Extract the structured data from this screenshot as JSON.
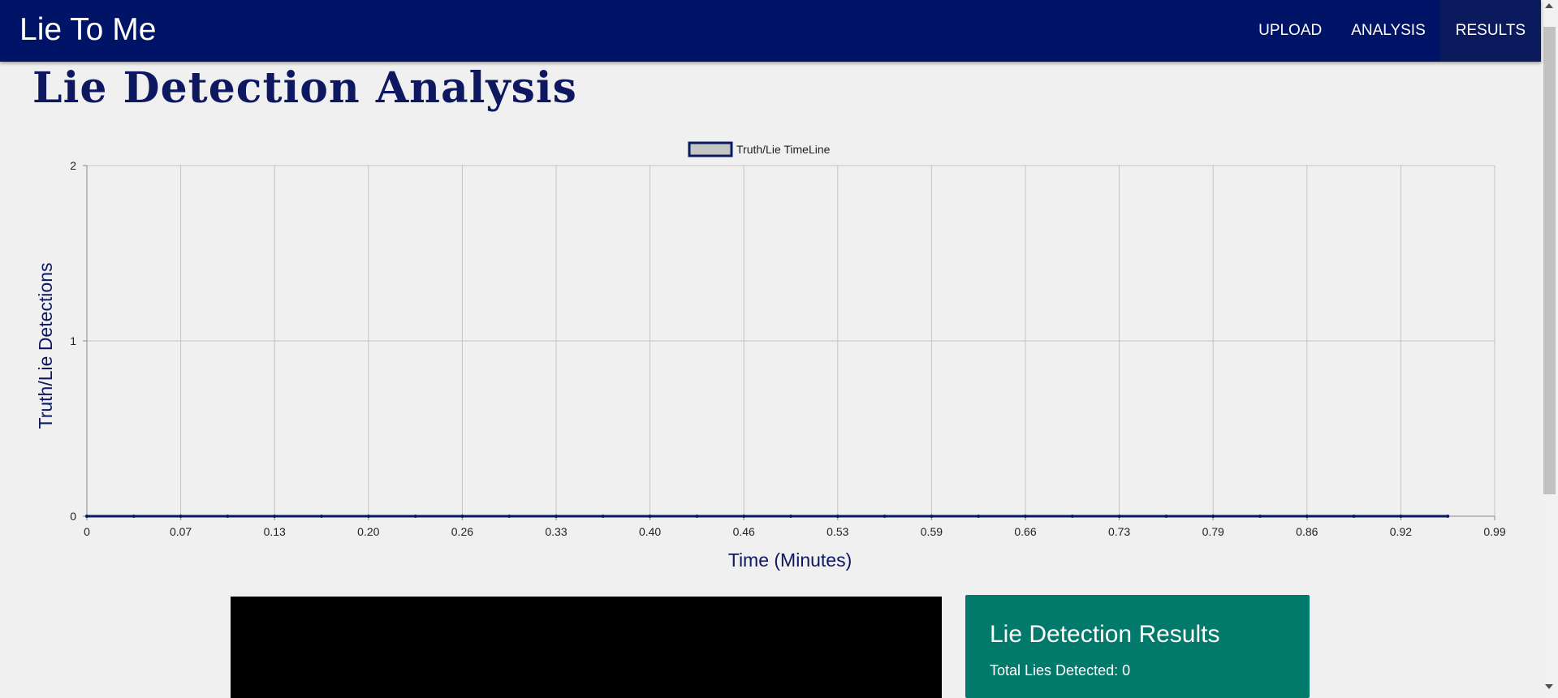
{
  "navbar": {
    "brand": "Lie To Me",
    "links": [
      {
        "label": "UPLOAD",
        "active": false
      },
      {
        "label": "ANALYSIS",
        "active": false
      },
      {
        "label": "RESULTS",
        "active": true
      }
    ]
  },
  "page": {
    "title": "Lie Detection Analysis"
  },
  "chart_data": {
    "type": "line",
    "legend": {
      "label": "Truth/Lie TimeLine",
      "position": "top-center"
    },
    "xlabel": "Time (Minutes)",
    "ylabel": "Truth/Lie Detections",
    "x_tick_labels": [
      "0",
      "0.07",
      "0.13",
      "0.20",
      "0.26",
      "0.33",
      "0.40",
      "0.46",
      "0.53",
      "0.59",
      "0.66",
      "0.73",
      "0.79",
      "0.86",
      "0.92",
      "0.99"
    ],
    "y_tick_labels": [
      "0",
      "1",
      "2"
    ],
    "xlim": [
      0,
      0.99
    ],
    "ylim": [
      0,
      2
    ],
    "grid": true,
    "series": [
      {
        "name": "Truth/Lie TimeLine",
        "x": [
          0,
          0.033,
          0.066,
          0.099,
          0.132,
          0.165,
          0.198,
          0.231,
          0.264,
          0.297,
          0.33,
          0.363,
          0.396,
          0.429,
          0.462,
          0.495,
          0.528,
          0.561,
          0.594,
          0.627,
          0.66,
          0.693,
          0.726,
          0.759,
          0.792,
          0.825,
          0.858,
          0.891,
          0.924,
          0.957
        ],
        "y": [
          0,
          0,
          0,
          0,
          0,
          0,
          0,
          0,
          0,
          0,
          0,
          0,
          0,
          0,
          0,
          0,
          0,
          0,
          0,
          0,
          0,
          0,
          0,
          0,
          0,
          0,
          0,
          0,
          0,
          0
        ]
      }
    ],
    "colors": {
      "line": "#0a1a60",
      "grid": "#c4c4c4",
      "legend_fill": "#c4c4c4"
    }
  },
  "results": {
    "title": "Lie Detection Results",
    "total_label": "Total Lies Detected: ",
    "total_value": "0"
  },
  "colors": {
    "navbar": "#001467",
    "results_card": "#017a6b",
    "title": "#0d1860"
  }
}
